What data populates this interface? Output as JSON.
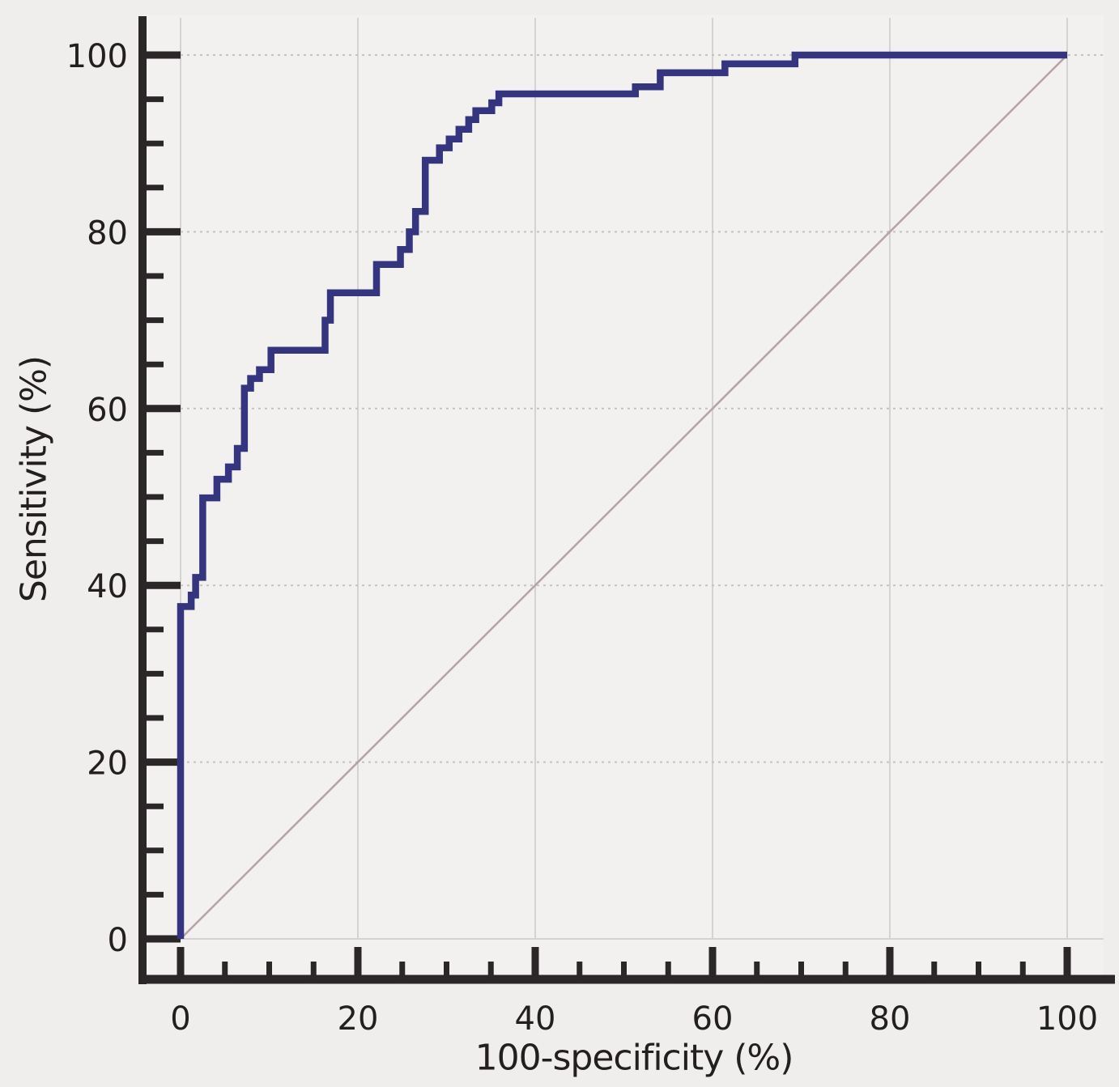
{
  "chart_data": {
    "type": "line",
    "subtype": "roc_curve_step",
    "title": "",
    "xlabel": "100-specificity (%)",
    "ylabel": "Sensitivity (%)",
    "xlim": [
      0,
      100
    ],
    "ylim": [
      0,
      100
    ],
    "x_ticks": [
      0,
      20,
      40,
      60,
      80,
      100
    ],
    "y_ticks": [
      0,
      20,
      40,
      60,
      80,
      100
    ],
    "minor_tick_step": 5,
    "grid": true,
    "legend": "none",
    "series": [
      {
        "name": "ROC curve",
        "color": "#34347f",
        "line_width": 8.5,
        "points": [
          [
            0,
            0
          ],
          [
            0,
            37.6
          ],
          [
            1.2,
            37.6
          ],
          [
            1.2,
            38.9
          ],
          [
            1.7,
            38.9
          ],
          [
            1.7,
            40.9
          ],
          [
            2.5,
            40.9
          ],
          [
            2.5,
            49.9
          ],
          [
            4.1,
            49.9
          ],
          [
            4.1,
            52
          ],
          [
            5.4,
            52
          ],
          [
            5.4,
            53.4
          ],
          [
            6.4,
            53.4
          ],
          [
            6.4,
            55.5
          ],
          [
            7.2,
            55.5
          ],
          [
            7.2,
            62.3
          ],
          [
            7.9,
            62.3
          ],
          [
            7.9,
            63.4
          ],
          [
            8.9,
            63.4
          ],
          [
            8.9,
            64.4
          ],
          [
            10.2,
            64.4
          ],
          [
            10.2,
            66.6
          ],
          [
            16.3,
            66.6
          ],
          [
            16.3,
            70
          ],
          [
            16.9,
            70
          ],
          [
            16.9,
            73.1
          ],
          [
            22.1,
            73.1
          ],
          [
            22.1,
            76.3
          ],
          [
            24.8,
            76.3
          ],
          [
            24.8,
            78
          ],
          [
            25.8,
            78
          ],
          [
            25.8,
            80
          ],
          [
            26.5,
            80
          ],
          [
            26.5,
            82.3
          ],
          [
            27.6,
            82.3
          ],
          [
            27.6,
            88.1
          ],
          [
            29.2,
            88.1
          ],
          [
            29.2,
            89.5
          ],
          [
            30.3,
            89.5
          ],
          [
            30.3,
            90.5
          ],
          [
            31.4,
            90.5
          ],
          [
            31.4,
            91.6
          ],
          [
            32.5,
            91.6
          ],
          [
            32.5,
            92.7
          ],
          [
            33.3,
            92.7
          ],
          [
            33.3,
            93.7
          ],
          [
            35.1,
            93.7
          ],
          [
            35.1,
            94.6
          ],
          [
            35.9,
            94.6
          ],
          [
            35.9,
            95.6
          ],
          [
            51.3,
            95.6
          ],
          [
            51.3,
            96.4
          ],
          [
            54.1,
            96.4
          ],
          [
            54.1,
            98
          ],
          [
            61.4,
            98
          ],
          [
            61.4,
            99
          ],
          [
            69.3,
            99
          ],
          [
            69.3,
            100
          ],
          [
            100,
            100
          ]
        ]
      },
      {
        "name": "reference diagonal",
        "color": "#b7a1aa",
        "line_width": 2.5,
        "points": [
          [
            0,
            0
          ],
          [
            100,
            100
          ]
        ]
      }
    ],
    "colors": {
      "axis": "#2b2728",
      "text": "#241f1f",
      "grid_horizontal_dotted": "#c3c1c1",
      "grid_vertical_solid": "#d4d2d2",
      "background": "#efeeed",
      "plot_background": "#f2f1f0"
    }
  }
}
